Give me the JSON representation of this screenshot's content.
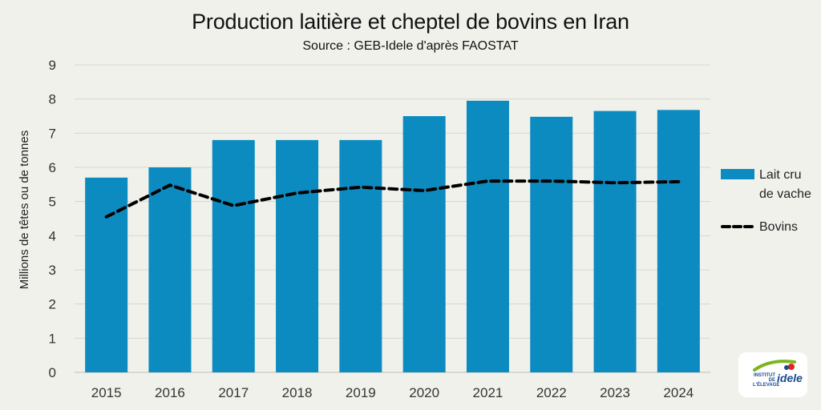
{
  "chart_data": {
    "type": "bar",
    "title": "Production laitière et cheptel de bovins en Iran",
    "subtitle": "Source : GEB-Idele d'après FAOSTAT",
    "ylabel": "Millions de têtes ou de tonnes",
    "xlabel": "",
    "ylim": [
      0,
      9
    ],
    "yticks": [
      0,
      1,
      2,
      3,
      4,
      5,
      6,
      7,
      8,
      9
    ],
    "grid": true,
    "categories": [
      "2015",
      "2016",
      "2017",
      "2018",
      "2019",
      "2020",
      "2021",
      "2022",
      "2023",
      "2024"
    ],
    "series": [
      {
        "name": "Lait cru de vache",
        "kind": "bar",
        "color": "#0c8bc0",
        "values": [
          5.7,
          6.0,
          6.8,
          6.8,
          6.8,
          7.5,
          7.95,
          7.48,
          7.65,
          7.68
        ]
      },
      {
        "name": "Bovins",
        "kind": "line-dashed",
        "color": "#000000",
        "values": [
          4.55,
          5.48,
          4.88,
          5.25,
          5.42,
          5.32,
          5.6,
          5.6,
          5.55,
          5.58
        ]
      }
    ],
    "legend": {
      "position": "right",
      "items": [
        {
          "lines": [
            "Lait cru",
            "de vache"
          ],
          "kind": "bar"
        },
        {
          "lines": [
            "Bovins"
          ],
          "kind": "line-dashed"
        }
      ]
    }
  },
  "logo": {
    "small_text": "INSTITUT DE L'ÉLEVAGE",
    "main_text": "idele"
  }
}
